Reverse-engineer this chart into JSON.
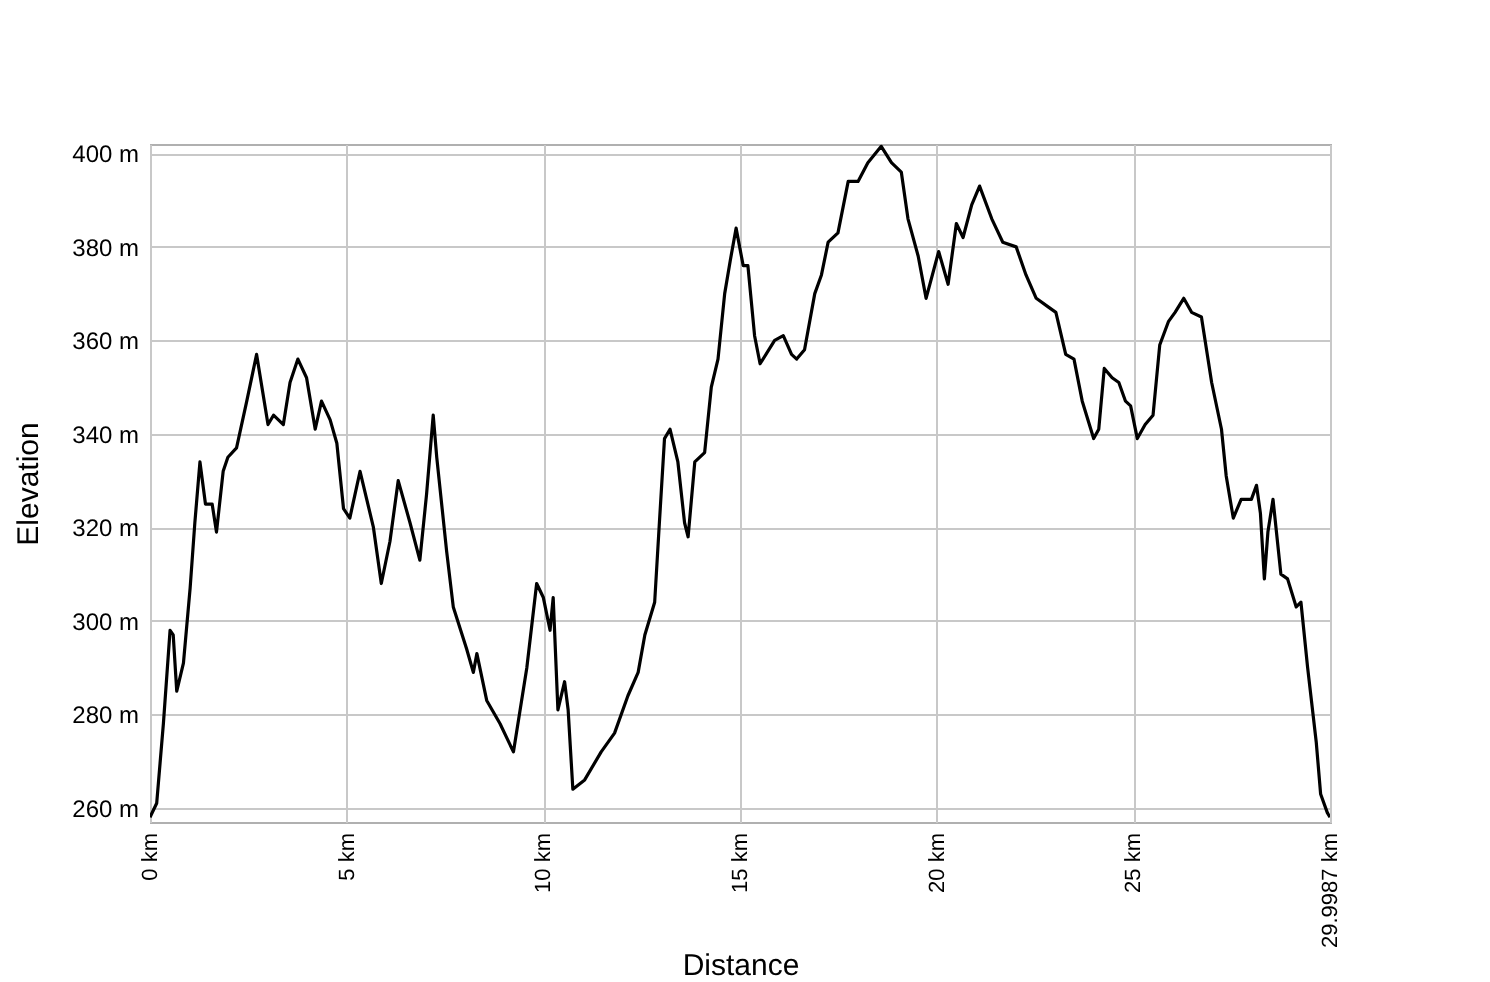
{
  "chart_data": {
    "type": "line",
    "xlabel": "Distance",
    "ylabel": "Elevation",
    "grid": true,
    "xlim": [
      0,
      29.9987
    ],
    "ylim": [
      257,
      402
    ],
    "xticks": [
      {
        "value": 0,
        "label": "0 km"
      },
      {
        "value": 5,
        "label": "5 km"
      },
      {
        "value": 10,
        "label": "10 km"
      },
      {
        "value": 15,
        "label": "15 km"
      },
      {
        "value": 20,
        "label": "20 km"
      },
      {
        "value": 25,
        "label": "25 km"
      },
      {
        "value": 29.9987,
        "label": "29.9987 km"
      }
    ],
    "yticks": [
      {
        "value": 260,
        "label": "260 m"
      },
      {
        "value": 280,
        "label": "280 m"
      },
      {
        "value": 300,
        "label": "300 m"
      },
      {
        "value": 320,
        "label": "320 m"
      },
      {
        "value": 340,
        "label": "340 m"
      },
      {
        "value": 360,
        "label": "360 m"
      },
      {
        "value": 380,
        "label": "380 m"
      },
      {
        "value": 400,
        "label": "400 m"
      }
    ],
    "x": [
      0,
      0.17,
      0.34,
      0.51,
      0.59,
      0.68,
      0.85,
      1.02,
      1.14,
      1.27,
      1.41,
      1.58,
      1.69,
      1.86,
      1.98,
      2.2,
      2.46,
      2.71,
      3.0,
      3.14,
      3.39,
      3.56,
      3.76,
      3.98,
      4.2,
      4.36,
      4.58,
      4.75,
      4.92,
      5.08,
      5.34,
      5.51,
      5.68,
      5.88,
      6.1,
      6.31,
      6.61,
      6.86,
      7.03,
      7.2,
      7.29,
      7.54,
      7.71,
      8.05,
      8.22,
      8.31,
      8.56,
      8.9,
      9.24,
      9.58,
      9.83,
      10.0,
      10.17,
      10.25,
      10.37,
      10.54,
      10.63,
      10.75,
      11.05,
      11.47,
      11.81,
      12.15,
      12.41,
      12.58,
      12.83,
      12.95,
      13.08,
      13.22,
      13.42,
      13.59,
      13.68,
      13.85,
      14.1,
      14.27,
      14.44,
      14.61,
      14.75,
      14.9,
      15.08,
      15.2,
      15.37,
      15.51,
      15.88,
      16.1,
      16.31,
      16.44,
      16.64,
      16.9,
      17.07,
      17.24,
      17.49,
      17.75,
      18.0,
      18.25,
      18.59,
      18.85,
      19.1,
      19.27,
      19.53,
      19.73,
      20.05,
      20.29,
      20.5,
      20.67,
      20.89,
      21.09,
      21.4,
      21.68,
      22.02,
      22.27,
      22.53,
      22.86,
      23.03,
      23.28,
      23.49,
      23.7,
      23.99,
      24.12,
      24.26,
      24.46,
      24.63,
      24.8,
      24.93,
      25.1,
      25.3,
      25.5,
      25.67,
      25.89,
      26.06,
      26.28,
      26.48,
      26.73,
      26.99,
      27.24,
      27.36,
      27.54,
      27.74,
      28.0,
      28.13,
      28.23,
      28.33,
      28.42,
      28.55,
      28.75,
      28.92,
      29.14,
      29.26,
      29.43,
      29.65,
      29.76,
      29.93,
      29.9987
    ],
    "series": [
      {
        "color": "#000000",
        "values": [
          258,
          261,
          278,
          298,
          297,
          285,
          291,
          307,
          321,
          334,
          325,
          325,
          319,
          332,
          335,
          337,
          347,
          357,
          342,
          344,
          342,
          351,
          356,
          352,
          341,
          347,
          343,
          338,
          324,
          322,
          332,
          326,
          320,
          308,
          317,
          330,
          321,
          313,
          327,
          344,
          335,
          315,
          303,
          294,
          289,
          293,
          283,
          278,
          272,
          290,
          308,
          305,
          298,
          305,
          281,
          287,
          281,
          264,
          266,
          272,
          276,
          284,
          289,
          297,
          304,
          321,
          339,
          341,
          334,
          321,
          318,
          334,
          336,
          350,
          356,
          370,
          377,
          384,
          376,
          376,
          361,
          355,
          360,
          361,
          357,
          356,
          358,
          370,
          374,
          381,
          383,
          394,
          394,
          398,
          401.5,
          398,
          396,
          386,
          378,
          369,
          379,
          372,
          385,
          382,
          389,
          393,
          386,
          381,
          380,
          374,
          369,
          367,
          366,
          357,
          356,
          347,
          339,
          341,
          354,
          352,
          351,
          347,
          346,
          339,
          342,
          344,
          359,
          364,
          366,
          369,
          366,
          365,
          351,
          341,
          331,
          322,
          326,
          326,
          329,
          323,
          309,
          319,
          326,
          310,
          309,
          303,
          304,
          290,
          274,
          263,
          259,
          258
        ]
      }
    ]
  }
}
